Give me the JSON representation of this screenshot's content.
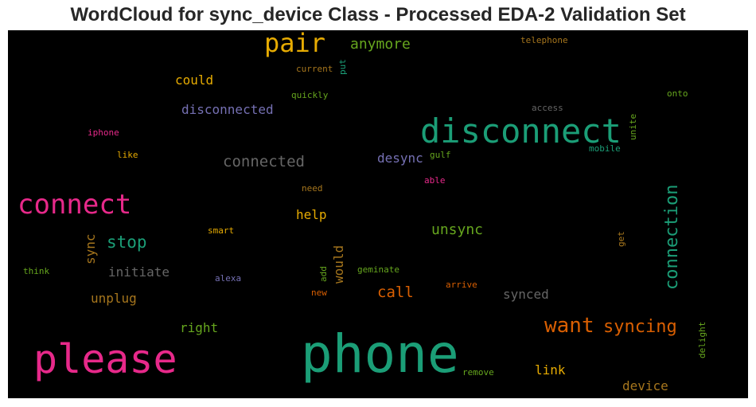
{
  "title": "WordCloud for sync_device Class - Processed EDA-2 Validation Set",
  "chart_data": {
    "type": "wordcloud",
    "background": "#000000",
    "words": [
      {
        "text": "phone",
        "color": "#1b9e77"
      },
      {
        "text": "please",
        "color": "#e7298a"
      },
      {
        "text": "disconnect",
        "color": "#1b9e77"
      },
      {
        "text": "connect",
        "color": "#e7298a"
      },
      {
        "text": "pair",
        "color": "#e6ab02"
      },
      {
        "text": "want",
        "color": "#d95f02"
      },
      {
        "text": "syncing",
        "color": "#d95f02"
      },
      {
        "text": "connection",
        "color": "#1b9e77"
      },
      {
        "text": "anymore",
        "color": "#66a61e"
      },
      {
        "text": "stop",
        "color": "#1b9e77"
      },
      {
        "text": "connected",
        "color": "#666666"
      },
      {
        "text": "unsync",
        "color": "#66a61e"
      },
      {
        "text": "disconnected",
        "color": "#7570b3"
      },
      {
        "text": "could",
        "color": "#e6ab02"
      },
      {
        "text": "call",
        "color": "#d95f02"
      },
      {
        "text": "desync",
        "color": "#7570b3"
      },
      {
        "text": "help",
        "color": "#e6ab02"
      },
      {
        "text": "initiate",
        "color": "#666666"
      },
      {
        "text": "unplug",
        "color": "#a6761d"
      },
      {
        "text": "synced",
        "color": "#666666"
      },
      {
        "text": "right",
        "color": "#66a61e"
      },
      {
        "text": "link",
        "color": "#e6ab02"
      },
      {
        "text": "device",
        "color": "#a6761d"
      },
      {
        "text": "sync",
        "color": "#a6761d"
      },
      {
        "text": "would",
        "color": "#a6761d"
      },
      {
        "text": "telephone",
        "color": "#a6761d"
      },
      {
        "text": "current",
        "color": "#a6761d"
      },
      {
        "text": "put",
        "color": "#1b9e77"
      },
      {
        "text": "quickly",
        "color": "#66a61e"
      },
      {
        "text": "access",
        "color": "#666666"
      },
      {
        "text": "onto",
        "color": "#66a61e"
      },
      {
        "text": "unite",
        "color": "#66a61e"
      },
      {
        "text": "iphone",
        "color": "#e7298a"
      },
      {
        "text": "mobile",
        "color": "#1b9e77"
      },
      {
        "text": "like",
        "color": "#e6ab02"
      },
      {
        "text": "gulf",
        "color": "#66a61e"
      },
      {
        "text": "able",
        "color": "#e7298a"
      },
      {
        "text": "need",
        "color": "#a6761d"
      },
      {
        "text": "smart",
        "color": "#e6ab02"
      },
      {
        "text": "get",
        "color": "#a6761d"
      },
      {
        "text": "think",
        "color": "#66a61e"
      },
      {
        "text": "alexa",
        "color": "#7570b3"
      },
      {
        "text": "add",
        "color": "#66a61e"
      },
      {
        "text": "geminate",
        "color": "#66a61e"
      },
      {
        "text": "arrive",
        "color": "#d95f02"
      },
      {
        "text": "new",
        "color": "#d95f02"
      },
      {
        "text": "delight",
        "color": "#66a61e"
      },
      {
        "text": "remove",
        "color": "#66a61e"
      }
    ]
  }
}
